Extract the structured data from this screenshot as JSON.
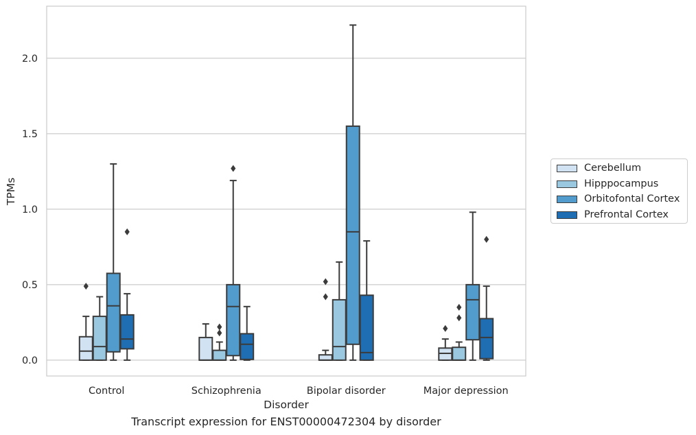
{
  "chart_data": {
    "type": "box",
    "xlabel": "Disorder",
    "ylabel": "TPMs",
    "caption": "Transcript expression for ENST00000472304 by disorder",
    "categories": [
      "Control",
      "Schizophrenia",
      "Bipolar disorder",
      "Major depression"
    ],
    "ylim": [
      -0.105,
      2.345
    ],
    "yticks": [
      0.0,
      0.5,
      1.0,
      1.5,
      2.0
    ],
    "ytick_labels": [
      "0.0",
      "0.5",
      "1.0",
      "1.5",
      "2.0"
    ],
    "grid": true,
    "legend_position": "right",
    "series": [
      {
        "name": "Cerebellum",
        "color": "#d1e2f2",
        "boxes": [
          {
            "whislo": 0.0,
            "q1": 0.0,
            "med": 0.06,
            "q3": 0.155,
            "whishi": 0.29,
            "fliers": [
              0.49
            ]
          },
          {
            "whislo": 0.0,
            "q1": 0.0,
            "med": 0.0,
            "q3": 0.15,
            "whishi": 0.24,
            "fliers": []
          },
          {
            "whislo": 0.0,
            "q1": 0.0,
            "med": 0.0,
            "q3": 0.035,
            "whishi": 0.065,
            "fliers": [
              0.42,
              0.52
            ]
          },
          {
            "whislo": 0.0,
            "q1": 0.0,
            "med": 0.045,
            "q3": 0.08,
            "whishi": 0.14,
            "fliers": [
              0.21
            ]
          }
        ]
      },
      {
        "name": "Hipppocampus",
        "color": "#9ac8e0",
        "boxes": [
          {
            "whislo": 0.0,
            "q1": 0.0,
            "med": 0.09,
            "q3": 0.29,
            "whishi": 0.42,
            "fliers": []
          },
          {
            "whislo": 0.0,
            "q1": 0.0,
            "med": 0.0,
            "q3": 0.065,
            "whishi": 0.12,
            "fliers": [
              0.18,
              0.22
            ]
          },
          {
            "whislo": 0.0,
            "q1": 0.0,
            "med": 0.09,
            "q3": 0.4,
            "whishi": 0.65,
            "fliers": []
          },
          {
            "whislo": 0.0,
            "q1": 0.0,
            "med": 0.0,
            "q3": 0.085,
            "whishi": 0.12,
            "fliers": [
              0.28,
              0.35
            ]
          }
        ]
      },
      {
        "name": "Orbitofontal Cortex",
        "color": "#519ccc",
        "boxes": [
          {
            "whislo": 0.0,
            "q1": 0.055,
            "med": 0.36,
            "q3": 0.575,
            "whishi": 1.3,
            "fliers": []
          },
          {
            "whislo": 0.0,
            "q1": 0.03,
            "med": 0.355,
            "q3": 0.5,
            "whishi": 1.19,
            "fliers": [
              1.27
            ]
          },
          {
            "whislo": 0.0,
            "q1": 0.105,
            "med": 0.85,
            "q3": 1.55,
            "whishi": 2.22,
            "fliers": []
          },
          {
            "whislo": 0.0,
            "q1": 0.135,
            "med": 0.4,
            "q3": 0.5,
            "whishi": 0.98,
            "fliers": []
          }
        ]
      },
      {
        "name": "Prefrontal Cortex",
        "color": "#1f6eb3",
        "boxes": [
          {
            "whislo": 0.0,
            "q1": 0.075,
            "med": 0.14,
            "q3": 0.3,
            "whishi": 0.44,
            "fliers": [
              0.85
            ]
          },
          {
            "whislo": 0.0,
            "q1": 0.005,
            "med": 0.105,
            "q3": 0.175,
            "whishi": 0.355,
            "fliers": []
          },
          {
            "whislo": 0.0,
            "q1": 0.0,
            "med": 0.05,
            "q3": 0.43,
            "whishi": 0.79,
            "fliers": []
          },
          {
            "whislo": 0.0,
            "q1": 0.01,
            "med": 0.15,
            "q3": 0.275,
            "whishi": 0.49,
            "fliers": [
              0.8
            ]
          }
        ]
      }
    ]
  }
}
